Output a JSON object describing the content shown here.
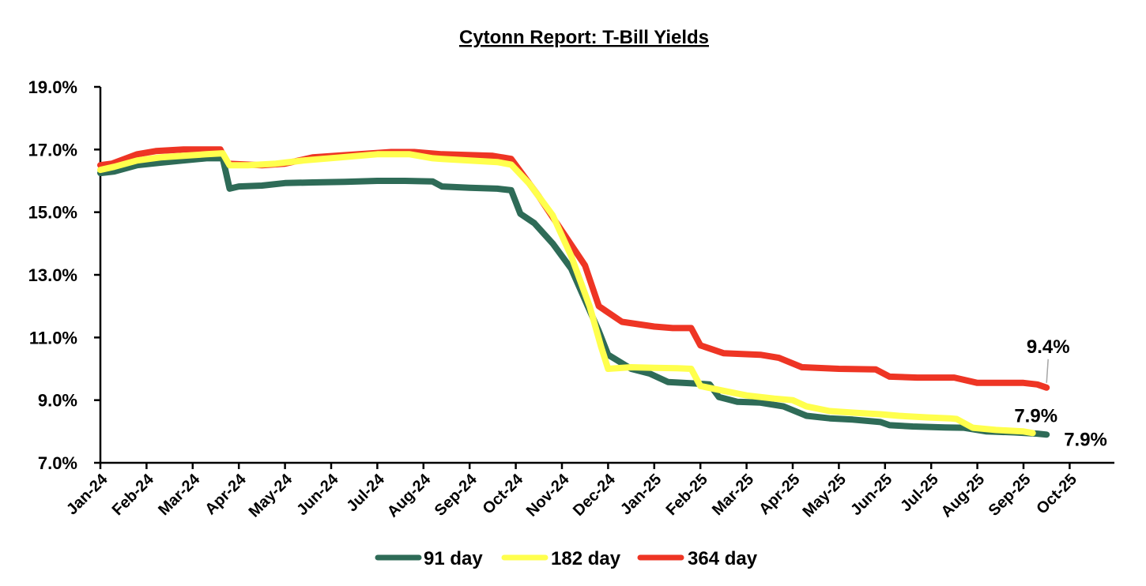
{
  "chart_data": {
    "type": "line",
    "title": "Cytonn Report: T-Bill Yields",
    "xlabel": "",
    "ylabel": "",
    "ylim": [
      7.0,
      19.0
    ],
    "y_ticks": [
      "7.0%",
      "9.0%",
      "11.0%",
      "13.0%",
      "15.0%",
      "17.0%",
      "19.0%"
    ],
    "y_tick_values": [
      7,
      9,
      11,
      13,
      15,
      17,
      19
    ],
    "x_ticks": [
      "Jan-24",
      "Feb-24",
      "Mar-24",
      "Apr-24",
      "May-24",
      "Jun-24",
      "Jul-24",
      "Aug-24",
      "Sep-24",
      "Oct-24",
      "Nov-24",
      "Dec-24",
      "Jan-25",
      "Feb-25",
      "Mar-25",
      "Apr-25",
      "May-25",
      "Jun-25",
      "Jul-25",
      "Aug-25",
      "Sep-25",
      "Oct-25"
    ],
    "x_unit": "months since Jan-24",
    "xlim": [
      0,
      22
    ],
    "grid": false,
    "legend_position": "bottom",
    "series": [
      {
        "name": "91 day",
        "color": "#2e6b57",
        "x": [
          0,
          0.3,
          0.8,
          1.3,
          1.8,
          2.3,
          2.65,
          2.8,
          3.0,
          3.5,
          4.0,
          4.6,
          5.3,
          6.0,
          6.6,
          7.2,
          7.4,
          8.0,
          8.6,
          8.9,
          9.1,
          9.4,
          9.8,
          10.2,
          10.5,
          10.8,
          11.0,
          11.5,
          11.9,
          12.3,
          12.9,
          13.2,
          13.4,
          13.8,
          14.3,
          14.8,
          15.3,
          15.8,
          16.3,
          16.9,
          17.1,
          17.6,
          18.3,
          18.7,
          19.2,
          19.8,
          20.3,
          20.5
        ],
        "values": [
          16.25,
          16.3,
          16.5,
          16.58,
          16.65,
          16.72,
          16.72,
          15.75,
          15.82,
          15.85,
          15.93,
          15.95,
          15.97,
          16.0,
          16.0,
          15.98,
          15.82,
          15.78,
          15.75,
          15.7,
          14.95,
          14.65,
          14.0,
          13.2,
          12.2,
          11.2,
          10.45,
          10.0,
          9.85,
          9.58,
          9.53,
          9.5,
          9.1,
          8.95,
          8.92,
          8.8,
          8.5,
          8.42,
          8.38,
          8.3,
          8.2,
          8.16,
          8.13,
          8.12,
          8.0,
          7.97,
          7.93,
          7.9
        ]
      },
      {
        "name": "182 day",
        "color": "#ffff4d",
        "x": [
          0,
          0.3,
          0.8,
          1.3,
          1.8,
          2.3,
          2.65,
          2.8,
          3.2,
          3.8,
          4.4,
          5.2,
          6.0,
          6.7,
          7.2,
          7.4,
          8.0,
          8.6,
          8.9,
          9.3,
          9.8,
          10.2,
          10.6,
          10.85,
          11.0,
          11.5,
          12.0,
          12.5,
          12.8,
          13.0,
          13.5,
          14.0,
          14.6,
          15.0,
          15.3,
          15.8,
          16.3,
          16.9,
          17.3,
          17.9,
          18.4,
          18.55,
          18.9,
          19.4,
          20.0,
          20.2
        ],
        "values": [
          16.35,
          16.45,
          16.65,
          16.75,
          16.8,
          16.85,
          16.88,
          16.5,
          16.5,
          16.55,
          16.65,
          16.75,
          16.85,
          16.85,
          16.72,
          16.7,
          16.65,
          16.6,
          16.52,
          15.9,
          14.9,
          13.6,
          12.0,
          10.7,
          10.0,
          10.05,
          10.03,
          10.02,
          10.0,
          9.45,
          9.3,
          9.15,
          9.05,
          9.0,
          8.8,
          8.65,
          8.6,
          8.55,
          8.5,
          8.45,
          8.42,
          8.4,
          8.12,
          8.05,
          8.0,
          7.95
        ]
      },
      {
        "name": "364 day",
        "color": "#ee3524",
        "x": [
          0,
          0.25,
          0.8,
          1.2,
          1.8,
          2.6,
          2.75,
          3.5,
          4.0,
          4.6,
          5.6,
          6.3,
          6.8,
          7.4,
          8.5,
          8.9,
          9.5,
          10.0,
          10.5,
          10.8,
          11.3,
          12.0,
          12.4,
          12.8,
          13.0,
          13.5,
          14.3,
          14.7,
          15.2,
          16.0,
          16.8,
          17.1,
          17.7,
          18.5,
          19.0,
          19.5,
          20.0,
          20.3,
          20.5
        ],
        "values": [
          16.5,
          16.55,
          16.85,
          16.95,
          17.0,
          17.0,
          16.55,
          16.5,
          16.55,
          16.75,
          16.85,
          16.92,
          16.92,
          16.85,
          16.8,
          16.7,
          15.5,
          14.4,
          13.3,
          12.0,
          11.5,
          11.35,
          11.3,
          11.3,
          10.75,
          10.5,
          10.45,
          10.35,
          10.05,
          10.0,
          9.98,
          9.75,
          9.72,
          9.72,
          9.55,
          9.55,
          9.55,
          9.5,
          9.4
        ]
      }
    ],
    "data_labels": [
      {
        "series": "364 day",
        "text": "9.4%"
      },
      {
        "series": "182 day",
        "text": "7.9%"
      },
      {
        "series": "91 day",
        "text": "7.9%"
      }
    ]
  }
}
